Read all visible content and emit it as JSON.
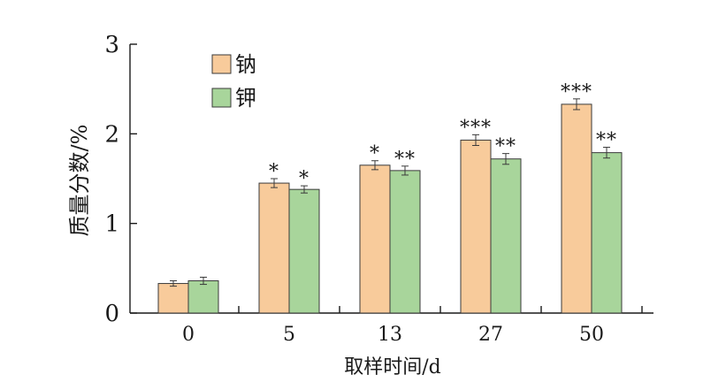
{
  "chart_data": {
    "type": "bar",
    "xlabel": "取样时间/d",
    "ylabel": "质量分数/%",
    "ylim": [
      0,
      3
    ],
    "yticks": [
      0,
      1,
      2,
      3
    ],
    "categories": [
      "0",
      "5",
      "13",
      "27",
      "50"
    ],
    "legend_position": "top-left",
    "grid": false,
    "series": [
      {
        "name": "钠",
        "color": "#f8cb9b",
        "values": [
          0.33,
          1.45,
          1.65,
          1.93,
          2.33
        ],
        "errors": [
          0.03,
          0.05,
          0.05,
          0.06,
          0.06
        ],
        "significance": [
          "",
          "*",
          "*",
          "***",
          "***"
        ]
      },
      {
        "name": "钾",
        "color": "#a8d59b",
        "values": [
          0.36,
          1.38,
          1.59,
          1.72,
          1.79
        ],
        "errors": [
          0.04,
          0.04,
          0.05,
          0.06,
          0.06
        ],
        "significance": [
          "",
          "*",
          "**",
          "**",
          "**"
        ]
      }
    ]
  }
}
